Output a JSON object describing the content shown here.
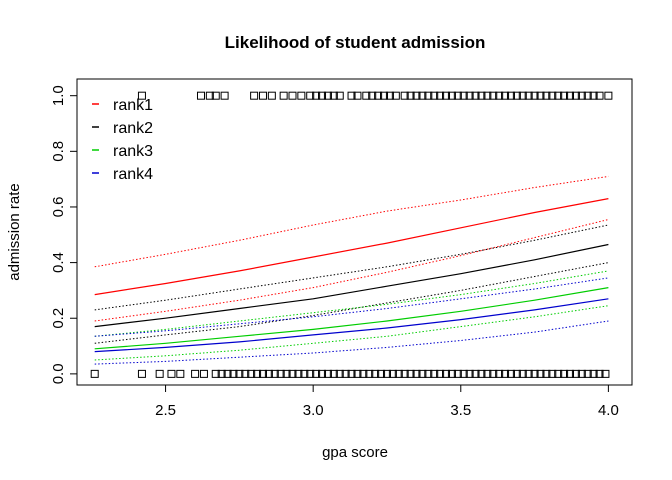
{
  "chart_data": {
    "type": "line",
    "title": "Likelihood of student admission",
    "xlabel": "gpa score",
    "ylabel": "admission rate",
    "xlim": [
      2.2,
      4.08
    ],
    "ylim": [
      -0.04,
      1.06
    ],
    "xticks": [
      2.5,
      3.0,
      3.5,
      4.0
    ],
    "xtick_labels": [
      "2.5",
      "3.0",
      "3.5",
      "4.0"
    ],
    "yticks": [
      0.0,
      0.2,
      0.4,
      0.6,
      0.8,
      1.0
    ],
    "ytick_labels": [
      "0.0",
      "0.2",
      "0.4",
      "0.6",
      "0.8",
      "1.0"
    ],
    "grid": false,
    "legend_position": "top-left",
    "series": [
      {
        "name": "rank1",
        "color": "#ff0000",
        "x": [
          2.26,
          2.5,
          2.75,
          3.0,
          3.25,
          3.5,
          3.75,
          4.0
        ],
        "fit": [
          0.285,
          0.325,
          0.37,
          0.42,
          0.47,
          0.525,
          0.58,
          0.63
        ],
        "lower": [
          0.19,
          0.225,
          0.265,
          0.31,
          0.365,
          0.425,
          0.49,
          0.555
        ],
        "upper": [
          0.385,
          0.43,
          0.48,
          0.535,
          0.585,
          0.625,
          0.67,
          0.71
        ]
      },
      {
        "name": "rank2",
        "color": "#000000",
        "x": [
          2.26,
          2.5,
          2.75,
          3.0,
          3.25,
          3.5,
          3.75,
          4.0
        ],
        "fit": [
          0.17,
          0.2,
          0.235,
          0.27,
          0.315,
          0.36,
          0.41,
          0.465
        ],
        "lower": [
          0.11,
          0.14,
          0.17,
          0.21,
          0.255,
          0.3,
          0.35,
          0.4
        ],
        "upper": [
          0.23,
          0.265,
          0.305,
          0.345,
          0.385,
          0.43,
          0.48,
          0.535
        ]
      },
      {
        "name": "rank3",
        "color": "#00cd00",
        "x": [
          2.26,
          2.5,
          2.75,
          3.0,
          3.25,
          3.5,
          3.75,
          4.0
        ],
        "fit": [
          0.09,
          0.11,
          0.135,
          0.16,
          0.19,
          0.225,
          0.265,
          0.31
        ],
        "lower": [
          0.05,
          0.065,
          0.085,
          0.11,
          0.135,
          0.17,
          0.205,
          0.245
        ],
        "upper": [
          0.135,
          0.16,
          0.19,
          0.22,
          0.25,
          0.285,
          0.325,
          0.37
        ]
      },
      {
        "name": "rank4",
        "color": "#0000cd",
        "x": [
          2.26,
          2.5,
          2.75,
          3.0,
          3.25,
          3.5,
          3.75,
          4.0
        ],
        "fit": [
          0.08,
          0.095,
          0.115,
          0.14,
          0.165,
          0.195,
          0.23,
          0.27
        ],
        "lower": [
          0.035,
          0.045,
          0.06,
          0.075,
          0.095,
          0.12,
          0.15,
          0.19
        ],
        "upper": [
          0.135,
          0.155,
          0.18,
          0.205,
          0.235,
          0.27,
          0.305,
          0.345
        ]
      }
    ],
    "observations": {
      "admitted_y": 1,
      "admitted_gpa": [
        2.42,
        2.62,
        2.65,
        2.67,
        2.7,
        2.8,
        2.83,
        2.86,
        2.9,
        2.93,
        2.96,
        2.99,
        3.01,
        3.03,
        3.05,
        3.07,
        3.09,
        3.13,
        3.15,
        3.18,
        3.2,
        3.22,
        3.24,
        3.26,
        3.28,
        3.31,
        3.33,
        3.35,
        3.37,
        3.39,
        3.41,
        3.43,
        3.45,
        3.47,
        3.49,
        3.51,
        3.53,
        3.55,
        3.57,
        3.59,
        3.61,
        3.63,
        3.65,
        3.67,
        3.69,
        3.71,
        3.73,
        3.75,
        3.77,
        3.79,
        3.81,
        3.83,
        3.85,
        3.87,
        3.89,
        3.91,
        3.93,
        3.95,
        3.97,
        4.0
      ],
      "rejected_y": 0,
      "rejected_gpa": [
        2.26,
        2.42,
        2.48,
        2.52,
        2.55,
        2.6,
        2.63,
        2.67,
        2.69,
        2.71,
        2.73,
        2.75,
        2.77,
        2.79,
        2.81,
        2.83,
        2.85,
        2.87,
        2.89,
        2.91,
        2.93,
        2.95,
        2.97,
        2.99,
        3.01,
        3.03,
        3.05,
        3.07,
        3.09,
        3.11,
        3.13,
        3.15,
        3.17,
        3.19,
        3.21,
        3.23,
        3.25,
        3.27,
        3.29,
        3.31,
        3.33,
        3.35,
        3.37,
        3.39,
        3.41,
        3.43,
        3.45,
        3.47,
        3.49,
        3.51,
        3.53,
        3.55,
        3.57,
        3.59,
        3.61,
        3.63,
        3.65,
        3.67,
        3.69,
        3.71,
        3.73,
        3.75,
        3.77,
        3.79,
        3.81,
        3.83,
        3.85,
        3.87,
        3.89,
        3.91,
        3.93,
        3.95,
        3.97,
        3.99
      ]
    }
  }
}
